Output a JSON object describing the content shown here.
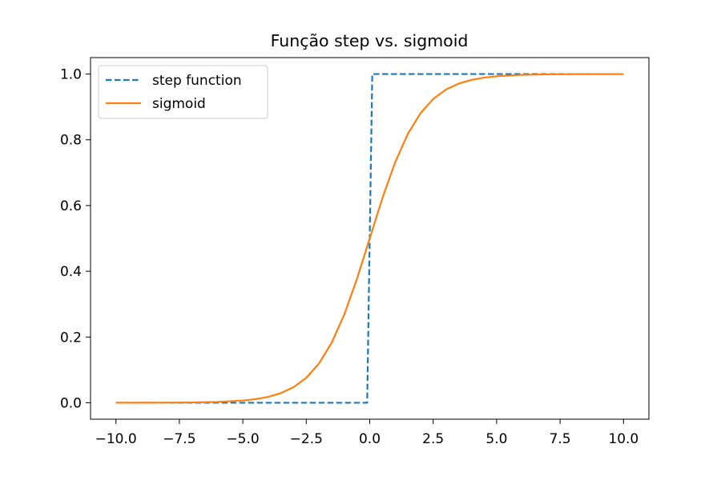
{
  "chart_data": {
    "type": "line",
    "title": "Função step vs. sigmoid",
    "xlabel": "",
    "ylabel": "",
    "xlim": [
      -11.0,
      11.0
    ],
    "ylim": [
      -0.05,
      1.05
    ],
    "xticks": [
      -10.0,
      -7.5,
      -5.0,
      -2.5,
      0.0,
      2.5,
      5.0,
      7.5,
      10.0
    ],
    "xtick_labels": [
      "−10.0",
      "−7.5",
      "−5.0",
      "−2.5",
      "0.0",
      "2.5",
      "5.0",
      "7.5",
      "10.0"
    ],
    "yticks": [
      0.0,
      0.2,
      0.4,
      0.6,
      0.8,
      1.0
    ],
    "ytick_labels": [
      "0.0",
      "0.2",
      "0.4",
      "0.6",
      "0.8",
      "1.0"
    ],
    "grid": false,
    "legend_position": "top-left",
    "series": [
      {
        "name": "step function",
        "style": "dashed",
        "color": "#1f77b4",
        "x": [
          -10.0,
          -0.1,
          0.1,
          10.0
        ],
        "y": [
          0.0,
          0.0,
          1.0,
          1.0
        ]
      },
      {
        "name": "sigmoid",
        "style": "solid",
        "color": "#ff7f0e",
        "x": [
          -10.0,
          -9.0,
          -8.0,
          -7.0,
          -6.0,
          -5.0,
          -4.5,
          -4.0,
          -3.5,
          -3.0,
          -2.5,
          -2.0,
          -1.5,
          -1.0,
          -0.5,
          0.0,
          0.5,
          1.0,
          1.5,
          2.0,
          2.5,
          3.0,
          3.5,
          4.0,
          4.5,
          5.0,
          6.0,
          7.0,
          8.0,
          9.0,
          10.0
        ],
        "y": [
          5e-05,
          0.0001,
          0.0003,
          0.0009,
          0.0025,
          0.0067,
          0.011,
          0.018,
          0.0293,
          0.0474,
          0.0759,
          0.1192,
          0.1824,
          0.2689,
          0.3775,
          0.5,
          0.6225,
          0.7311,
          0.8176,
          0.8808,
          0.9241,
          0.9526,
          0.9707,
          0.982,
          0.989,
          0.9933,
          0.9975,
          0.9991,
          0.9997,
          0.9999,
          0.99995
        ]
      }
    ]
  }
}
